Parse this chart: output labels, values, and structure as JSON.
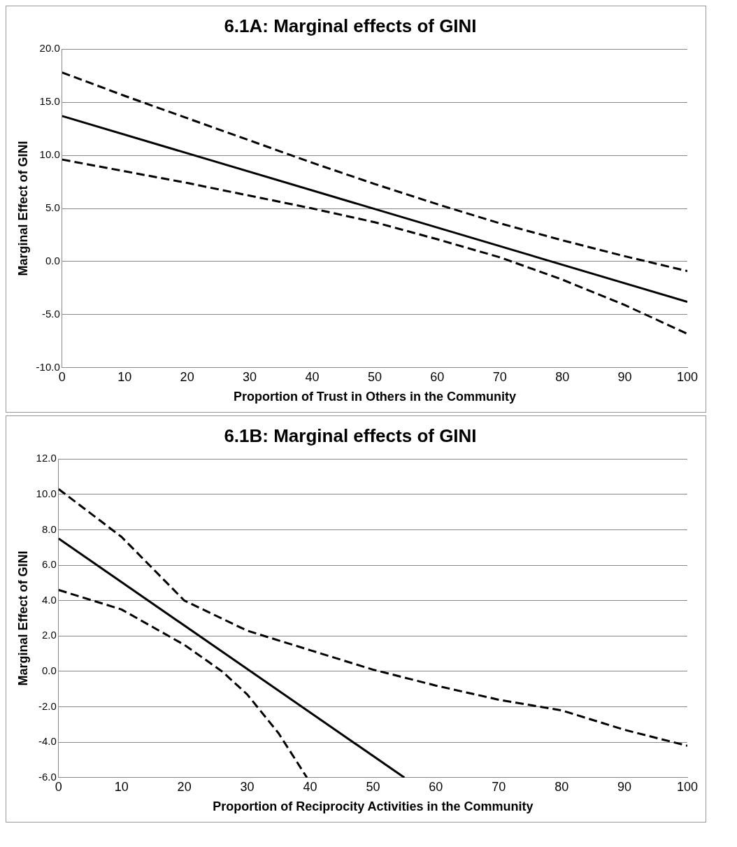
{
  "chart_data": [
    {
      "type": "line",
      "title": "6.1A: Marginal effects of GINI",
      "xlabel": "Proportion of Trust in Others in the Community",
      "ylabel": "Marginal Effect of GINI",
      "xlim": [
        0,
        100
      ],
      "xticks": [
        0,
        10,
        20,
        30,
        40,
        50,
        60,
        70,
        80,
        90,
        100
      ],
      "ylim": [
        -10,
        20
      ],
      "yticks": [
        {
          "value": -10,
          "label": "-10.0"
        },
        {
          "value": -5,
          "label": "-5.0"
        },
        {
          "value": 0,
          "label": "0.0"
        },
        {
          "value": 5,
          "label": "5.0"
        },
        {
          "value": 10,
          "label": "10.0"
        },
        {
          "value": 15,
          "label": "15.0"
        },
        {
          "value": 20,
          "label": "20.0"
        }
      ],
      "grid": "y",
      "marker": "none",
      "series": [
        {
          "color": "#000000",
          "line_style": "dashed",
          "x": [
            0,
            10,
            20,
            30,
            40,
            50,
            60,
            70,
            80,
            90,
            100
          ],
          "values": [
            17.8,
            15.6,
            13.5,
            11.4,
            9.3,
            7.3,
            5.4,
            3.6,
            2.0,
            0.5,
            -0.9
          ]
        },
        {
          "color": "#000000",
          "line_style": "solid",
          "x": [
            0,
            100
          ],
          "values": [
            13.7,
            -3.8
          ]
        },
        {
          "color": "#000000",
          "line_style": "dashed",
          "x": [
            0,
            10,
            20,
            30,
            40,
            50,
            60,
            70,
            80,
            90,
            100
          ],
          "values": [
            9.6,
            8.5,
            7.4,
            6.2,
            5.0,
            3.7,
            2.1,
            0.4,
            -1.7,
            -4.1,
            -6.8
          ]
        }
      ]
    },
    {
      "type": "line",
      "title": "6.1B: Marginal effects of GINI",
      "xlabel": "Proportion of Reciprocity Activities in the Community",
      "ylabel": "Marginal Effect of GINI",
      "xlim": [
        0,
        100
      ],
      "xticks": [
        0,
        10,
        20,
        30,
        40,
        50,
        60,
        70,
        80,
        90,
        100
      ],
      "ylim": [
        -6,
        12
      ],
      "yticks": [
        {
          "value": -6,
          "label": "-6.0"
        },
        {
          "value": -4,
          "label": "-4.0"
        },
        {
          "value": -2,
          "label": "-2.0"
        },
        {
          "value": 0,
          "label": "0.0"
        },
        {
          "value": 2,
          "label": "2.0"
        },
        {
          "value": 4,
          "label": "4.0"
        },
        {
          "value": 6,
          "label": "6.0"
        },
        {
          "value": 8,
          "label": "8.0"
        },
        {
          "value": 10,
          "label": "10.0"
        },
        {
          "value": 12,
          "label": "12.0"
        }
      ],
      "grid": "y",
      "marker": "none",
      "series": [
        {
          "color": "#000000",
          "line_style": "dashed",
          "x": [
            0,
            10,
            20,
            30,
            40,
            50,
            60,
            70,
            80,
            90,
            100
          ],
          "values": [
            10.3,
            7.6,
            4.0,
            2.3,
            1.2,
            0.1,
            -0.8,
            -1.6,
            -2.2,
            -3.3,
            -4.2
          ]
        },
        {
          "color": "#000000",
          "line_style": "solid",
          "x": [
            0,
            55
          ],
          "values": [
            7.5,
            -6
          ]
        },
        {
          "color": "#000000",
          "line_style": "dashed",
          "x": [
            0,
            10,
            20,
            26,
            30,
            35,
            39.5
          ],
          "values": [
            4.6,
            3.5,
            1.5,
            0,
            -1.3,
            -3.5,
            -6
          ]
        }
      ]
    }
  ]
}
